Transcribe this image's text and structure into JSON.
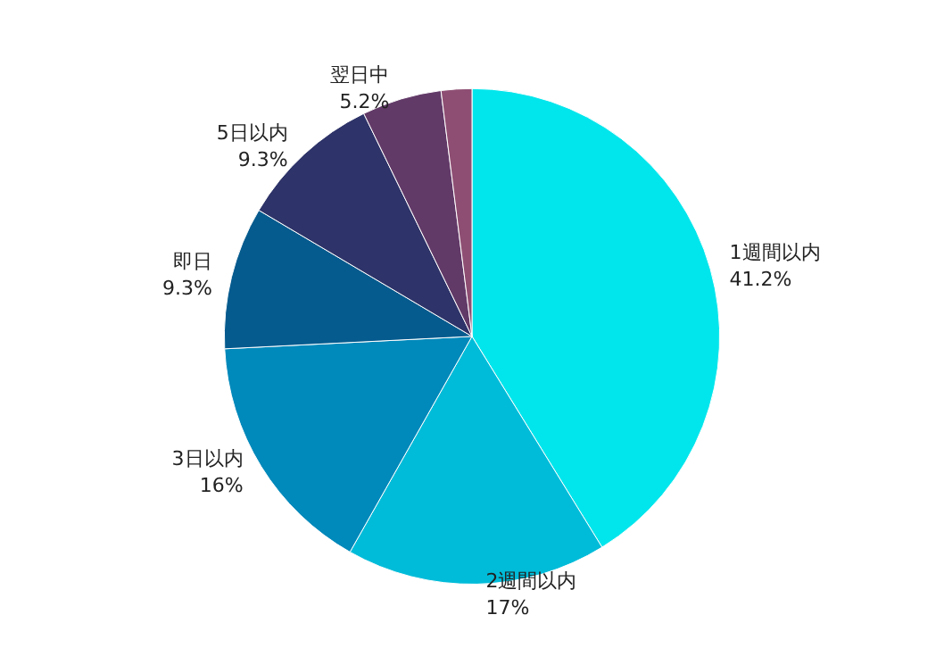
{
  "chart_data": {
    "type": "pie",
    "categories": [
      "1週間以内",
      "2週間以内",
      "3日以内",
      "即日",
      "5日以内",
      "翌日中",
      null
    ],
    "values": [
      41.2,
      17,
      16,
      9.3,
      9.3,
      5.2,
      2.0
    ],
    "value_labels": [
      "41.2%",
      "17%",
      "16%",
      "9.3%",
      "9.3%",
      "5.2%",
      null
    ],
    "colors": [
      "#00e6ec",
      "#00bcd9",
      "#0089bb",
      "#055b8e",
      "#2e3469",
      "#623a68",
      "#8e4e73"
    ],
    "legend": false
  }
}
